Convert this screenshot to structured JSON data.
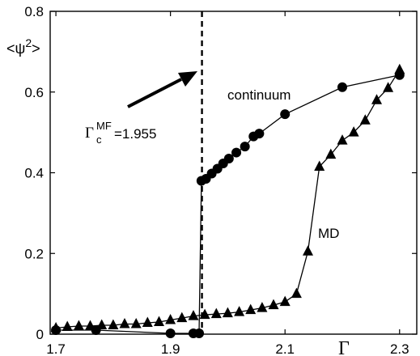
{
  "chart_data": {
    "type": "line",
    "xlabel": "Γ",
    "ylabel": "<ψ2>",
    "ylabel_parts": {
      "pre": "<ψ",
      "sup": "2",
      "post": ">"
    },
    "xlim": [
      1.69,
      2.33
    ],
    "ylim": [
      0,
      0.8
    ],
    "xticks": [
      1.7,
      1.9,
      2.1,
      2.3
    ],
    "xtick_labels": [
      "1.7",
      "1.9",
      "2.1",
      "2.3"
    ],
    "yticks": [
      0,
      0.2,
      0.4,
      0.6,
      0.8
    ],
    "ytick_labels": [
      "0",
      "0.2",
      "0.4",
      "0.6",
      "0.8"
    ],
    "grid": false,
    "vline": {
      "x": 1.955,
      "style": "dashed"
    },
    "annotations": [
      {
        "symbol": "Γ",
        "sup": "MF",
        "sub": "c",
        "text": "=1.955"
      }
    ],
    "series": [
      {
        "name": "continuum",
        "marker": "circle",
        "points": [
          [
            1.7,
            0.01
          ],
          [
            1.77,
            0.01
          ],
          [
            1.9,
            0.002
          ],
          [
            1.94,
            0.002
          ],
          [
            1.95,
            0.002
          ],
          [
            1.954,
            0.38
          ],
          [
            1.962,
            0.385
          ],
          [
            1.972,
            0.398
          ],
          [
            1.982,
            0.41
          ],
          [
            1.992,
            0.423
          ],
          [
            2.002,
            0.435
          ],
          [
            2.015,
            0.45
          ],
          [
            2.03,
            0.465
          ],
          [
            2.045,
            0.49
          ],
          [
            2.055,
            0.497
          ],
          [
            2.1,
            0.545
          ],
          [
            2.2,
            0.612
          ],
          [
            2.3,
            0.642
          ]
        ]
      },
      {
        "name": "MD",
        "marker": "triangle",
        "points": [
          [
            1.7,
            0.015
          ],
          [
            1.72,
            0.018
          ],
          [
            1.74,
            0.02
          ],
          [
            1.76,
            0.02
          ],
          [
            1.78,
            0.022
          ],
          [
            1.8,
            0.022
          ],
          [
            1.82,
            0.025
          ],
          [
            1.84,
            0.025
          ],
          [
            1.86,
            0.028
          ],
          [
            1.88,
            0.03
          ],
          [
            1.9,
            0.035
          ],
          [
            1.92,
            0.04
          ],
          [
            1.94,
            0.045
          ],
          [
            1.96,
            0.048
          ],
          [
            1.98,
            0.05
          ],
          [
            2.0,
            0.052
          ],
          [
            2.02,
            0.055
          ],
          [
            2.04,
            0.06
          ],
          [
            2.06,
            0.065
          ],
          [
            2.08,
            0.072
          ],
          [
            2.1,
            0.08
          ],
          [
            2.12,
            0.1
          ],
          [
            2.14,
            0.205
          ],
          [
            2.16,
            0.415
          ],
          [
            2.18,
            0.445
          ],
          [
            2.2,
            0.48
          ],
          [
            2.22,
            0.5
          ],
          [
            2.24,
            0.53
          ],
          [
            2.26,
            0.58
          ],
          [
            2.28,
            0.61
          ],
          [
            2.3,
            0.655
          ]
        ]
      }
    ]
  }
}
